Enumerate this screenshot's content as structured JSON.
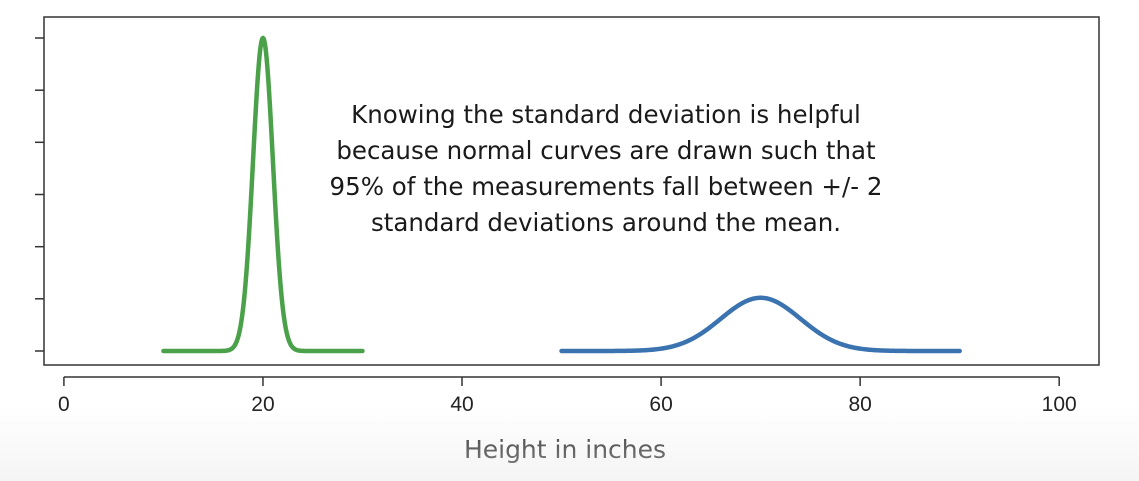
{
  "chart_data": {
    "type": "line",
    "xlabel": "Height in inches",
    "ylabel": "",
    "xlim": [
      -2,
      104
    ],
    "ylim": [
      0,
      1.0
    ],
    "x_ticks": [
      0,
      20,
      40,
      60,
      80,
      100
    ],
    "x_tick_labels": [
      "0",
      "20",
      "40",
      "60",
      "80",
      "100"
    ],
    "y_tick_count": 7,
    "grid": false,
    "series": [
      {
        "color": "#4aa14a",
        "mean": 20,
        "sd": 1.0,
        "x_range": [
          10,
          30
        ],
        "peak": 1.0
      },
      {
        "color": "#3a73b0",
        "mean": 70,
        "sd": 4.0,
        "x_range": [
          50,
          90
        ],
        "peak": 0.17
      }
    ],
    "annotation": [
      "Knowing the standard deviation is helpful",
      "because normal curves are drawn such that",
      "95% of the measurements fall between +/- 2",
      "standard deviations around the mean."
    ]
  }
}
